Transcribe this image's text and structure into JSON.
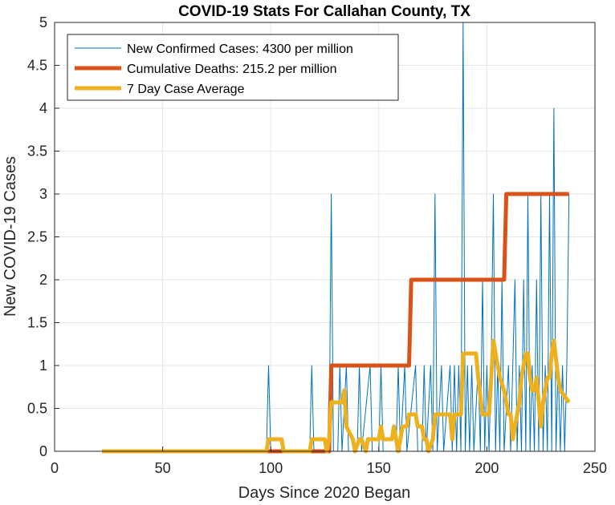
{
  "chart_data": {
    "type": "line",
    "title": "COVID-19 Stats For Callahan County, TX",
    "xlabel": "Days Since 2020 Began",
    "ylabel": "New COVID-19 Cases",
    "xlim": [
      0,
      250
    ],
    "ylim": [
      0,
      5
    ],
    "xticks": [
      "0",
      "50",
      "100",
      "150",
      "200",
      "250"
    ],
    "yticks": [
      "0",
      "0.5",
      "1",
      "1.5",
      "2",
      "2.5",
      "3",
      "3.5",
      "4",
      "4.5",
      "5"
    ],
    "grid": true,
    "legend_position": "top-left",
    "series": [
      {
        "name": "New Confirmed Cases: 4300 per million",
        "color": "#0072BD",
        "points": [
          [
            22,
            0
          ],
          [
            98,
            0
          ],
          [
            99,
            1
          ],
          [
            100,
            0
          ],
          [
            118,
            0
          ],
          [
            119,
            1
          ],
          [
            120,
            0
          ],
          [
            127,
            0
          ],
          [
            128,
            3
          ],
          [
            129,
            0
          ],
          [
            131,
            0
          ],
          [
            132,
            1
          ],
          [
            133,
            0
          ],
          [
            135,
            1
          ],
          [
            136,
            0
          ],
          [
            140,
            0
          ],
          [
            141,
            1
          ],
          [
            142,
            0
          ],
          [
            146,
            1
          ],
          [
            147,
            0
          ],
          [
            150,
            0
          ],
          [
            151,
            1
          ],
          [
            152,
            0
          ],
          [
            158,
            0
          ],
          [
            159,
            1
          ],
          [
            160,
            0
          ],
          [
            162,
            1
          ],
          [
            163,
            0
          ],
          [
            167,
            1
          ],
          [
            168,
            0
          ],
          [
            170,
            0
          ],
          [
            171,
            1
          ],
          [
            172,
            0
          ],
          [
            174,
            1
          ],
          [
            175,
            0
          ],
          [
            176,
            3
          ],
          [
            177,
            0
          ],
          [
            179,
            1
          ],
          [
            180,
            0
          ],
          [
            183,
            1
          ],
          [
            184,
            0
          ],
          [
            185,
            1
          ],
          [
            186,
            0
          ],
          [
            187,
            1
          ],
          [
            188,
            0
          ],
          [
            189,
            5
          ],
          [
            190,
            0
          ],
          [
            191,
            1
          ],
          [
            192,
            0
          ],
          [
            193,
            1
          ],
          [
            194,
            0
          ],
          [
            196,
            1
          ],
          [
            197,
            0
          ],
          [
            198,
            2
          ],
          [
            199,
            0
          ],
          [
            200,
            1
          ],
          [
            201,
            0
          ],
          [
            202,
            1
          ],
          [
            203,
            3
          ],
          [
            204,
            0
          ],
          [
            205,
            1
          ],
          [
            206,
            0
          ],
          [
            207,
            2
          ],
          [
            208,
            0
          ],
          [
            210,
            1
          ],
          [
            211,
            0
          ],
          [
            213,
            2
          ],
          [
            214,
            0
          ],
          [
            215,
            1
          ],
          [
            216,
            0
          ],
          [
            217,
            2
          ],
          [
            218,
            0
          ],
          [
            219,
            3
          ],
          [
            220,
            0
          ],
          [
            221,
            1
          ],
          [
            222,
            0
          ],
          [
            223,
            2
          ],
          [
            224,
            0
          ],
          [
            225,
            3
          ],
          [
            226,
            0
          ],
          [
            227,
            1
          ],
          [
            228,
            0
          ],
          [
            229,
            3
          ],
          [
            230,
            0
          ],
          [
            231,
            4
          ],
          [
            232,
            0
          ],
          [
            233,
            1
          ],
          [
            234,
            0
          ],
          [
            235,
            1
          ],
          [
            236,
            0
          ],
          [
            237,
            1
          ],
          [
            238,
            3
          ]
        ]
      },
      {
        "name": "Cumulative Deaths: 215.2 per million",
        "color": "#D95319",
        "points": [
          [
            22,
            0
          ],
          [
            127,
            0
          ],
          [
            128,
            1
          ],
          [
            164,
            1
          ],
          [
            165,
            2
          ],
          [
            208,
            2
          ],
          [
            209,
            3
          ],
          [
            238,
            3
          ]
        ]
      },
      {
        "name": "7 Day Case Average",
        "color": "#EDB120",
        "points": [
          [
            22,
            0
          ],
          [
            98,
            0
          ],
          [
            99,
            0.14
          ],
          [
            105,
            0.14
          ],
          [
            106,
            0
          ],
          [
            118,
            0
          ],
          [
            119,
            0.14
          ],
          [
            125,
            0.14
          ],
          [
            126,
            0
          ],
          [
            127,
            0.14
          ],
          [
            128,
            0.57
          ],
          [
            133,
            0.57
          ],
          [
            134,
            0.71
          ],
          [
            135,
            0.29
          ],
          [
            138,
            0.14
          ],
          [
            139,
            0
          ],
          [
            141,
            0.14
          ],
          [
            142,
            0.14
          ],
          [
            144,
            0
          ],
          [
            145,
            0.14
          ],
          [
            150,
            0.14
          ],
          [
            151,
            0.29
          ],
          [
            152,
            0.14
          ],
          [
            156,
            0.14
          ],
          [
            157,
            0.29
          ],
          [
            159,
            0
          ],
          [
            160,
            0.14
          ],
          [
            161,
            0.29
          ],
          [
            163,
            0.29
          ],
          [
            164,
            0.43
          ],
          [
            167,
            0.43
          ],
          [
            168,
            0.29
          ],
          [
            170,
            0.29
          ],
          [
            171,
            0.14
          ],
          [
            172,
            0.14
          ],
          [
            173,
            0
          ],
          [
            175,
            0.14
          ],
          [
            176,
            0.43
          ],
          [
            183,
            0.43
          ],
          [
            184,
            0.14
          ],
          [
            185,
            0.43
          ],
          [
            188,
            0.43
          ],
          [
            189,
            1.14
          ],
          [
            195,
            1.14
          ],
          [
            196,
            0.86
          ],
          [
            198,
            0.43
          ],
          [
            201,
            0.43
          ],
          [
            202,
            0.86
          ],
          [
            203,
            1.29
          ],
          [
            205,
            1.0
          ],
          [
            206,
            0.86
          ],
          [
            208,
            0.71
          ],
          [
            210,
            0.43
          ],
          [
            211,
            0.43
          ],
          [
            212,
            0.14
          ],
          [
            213,
            0.29
          ],
          [
            215,
            0.57
          ],
          [
            216,
            0.86
          ],
          [
            218,
            1.14
          ],
          [
            219,
            1.14
          ],
          [
            220,
            0.86
          ],
          [
            221,
            0.71
          ],
          [
            222,
            0.71
          ],
          [
            223,
            0.86
          ],
          [
            224,
            0.57
          ],
          [
            225,
            0.29
          ],
          [
            226,
            0.57
          ],
          [
            227,
            0.71
          ],
          [
            228,
            0.86
          ],
          [
            229,
            0.86
          ],
          [
            230,
            1.14
          ],
          [
            231,
            1.29
          ],
          [
            233,
            0.86
          ],
          [
            234,
            0.71
          ],
          [
            238,
            0.57
          ]
        ]
      }
    ]
  }
}
